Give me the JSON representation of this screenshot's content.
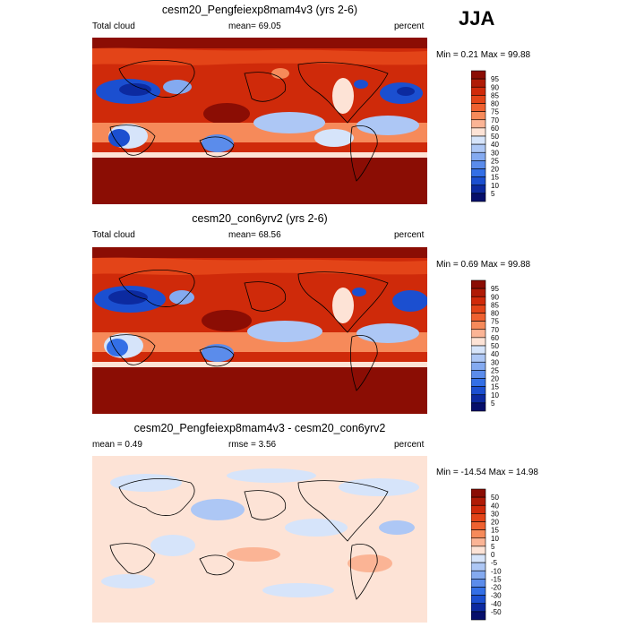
{
  "season": "JJA",
  "chart_data": [
    {
      "type": "heatmap",
      "title": "cesm20_Pengfeiexp8mam4v3 (yrs 2-6)",
      "left_label": "Total cloud",
      "center_label": "mean=  69.05",
      "units": "percent",
      "minmax": "Min =   0.21 Max =  99.88",
      "colorbar": {
        "levels": [
          "95",
          "90",
          "85",
          "80",
          "75",
          "70",
          "60",
          "50",
          "40",
          "30",
          "25",
          "20",
          "15",
          "10",
          "5"
        ],
        "colors": [
          "#8b0d04",
          "#b01b06",
          "#d02a0a",
          "#e34418",
          "#ef6130",
          "#f68a5a",
          "#fbb495",
          "#fde3d6",
          "#d6e4fa",
          "#adc7f5",
          "#84aaf0",
          "#5b8ceb",
          "#336fe6",
          "#1b4fd0",
          "#0c2aa0",
          "#060f6b"
        ]
      }
    },
    {
      "type": "heatmap",
      "title": "cesm20_con6yrv2 (yrs 2-6)",
      "left_label": "Total cloud",
      "center_label": "mean=  68.56",
      "units": "percent",
      "minmax": "Min =   0.69 Max =  99.88",
      "colorbar": {
        "levels": [
          "95",
          "90",
          "85",
          "80",
          "75",
          "70",
          "60",
          "50",
          "40",
          "30",
          "25",
          "20",
          "15",
          "10",
          "5"
        ],
        "colors": [
          "#8b0d04",
          "#b01b06",
          "#d02a0a",
          "#e34418",
          "#ef6130",
          "#f68a5a",
          "#fbb495",
          "#fde3d6",
          "#d6e4fa",
          "#adc7f5",
          "#84aaf0",
          "#5b8ceb",
          "#336fe6",
          "#1b4fd0",
          "#0c2aa0",
          "#060f6b"
        ]
      }
    },
    {
      "type": "heatmap",
      "title": "cesm20_Pengfeiexp8mam4v3 - cesm20_con6yrv2",
      "left_label": "mean =   0.49",
      "center_label": "rmse =   3.56",
      "units": "percent",
      "minmax": "Min = -14.54 Max =  14.98",
      "colorbar": {
        "levels": [
          "50",
          "40",
          "30",
          "20",
          "15",
          "10",
          "5",
          "0",
          "-5",
          "-10",
          "-15",
          "-20",
          "-30",
          "-40",
          "-50"
        ],
        "colors": [
          "#8b0d04",
          "#b01b06",
          "#d02a0a",
          "#e34418",
          "#ef6130",
          "#f68a5a",
          "#fbb495",
          "#fde3d6",
          "#d6e4fa",
          "#adc7f5",
          "#84aaf0",
          "#5b8ceb",
          "#336fe6",
          "#1b4fd0",
          "#0c2aa0",
          "#060f6b"
        ]
      }
    }
  ]
}
